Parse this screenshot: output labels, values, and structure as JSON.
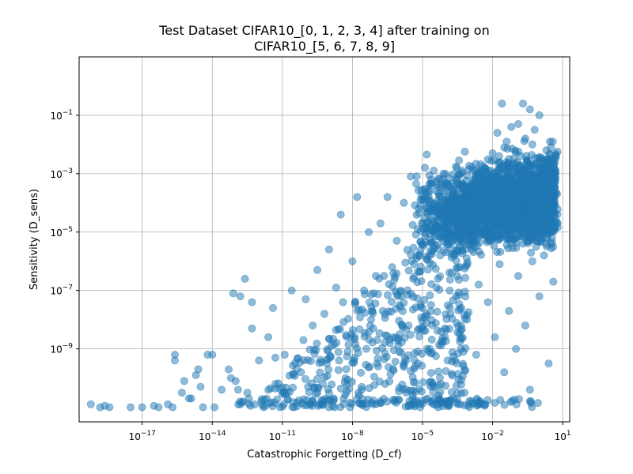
{
  "chart_data": {
    "type": "scatter",
    "title": [
      "Test Dataset CIFAR10_[0, 1, 2, 3, 4] after training on",
      "CIFAR10_[5, 6, 7, 8, 9]"
    ],
    "xlabel": "Catastrophic Forgetting (D_cf)",
    "ylabel": "Sensitivity (D_sens)",
    "xscale": "log",
    "yscale": "log",
    "xlim_log10": [
      -19.7,
      1.3
    ],
    "ylim_log10": [
      -11.5,
      1.0
    ],
    "x_ticks": [
      {
        "base": "10",
        "exp": "−17",
        "log": -17
      },
      {
        "base": "10",
        "exp": "−14",
        "log": -14
      },
      {
        "base": "10",
        "exp": "−11",
        "log": -11
      },
      {
        "base": "10",
        "exp": "−8",
        "log": -8
      },
      {
        "base": "10",
        "exp": "−5",
        "log": -5
      },
      {
        "base": "10",
        "exp": "−2",
        "log": -2
      },
      {
        "base": "10",
        "exp": "1",
        "log": 1
      }
    ],
    "y_ticks": [
      {
        "base": "10",
        "exp": "−1",
        "log": -1
      },
      {
        "base": "10",
        "exp": "−3",
        "log": -3
      },
      {
        "base": "10",
        "exp": "−5",
        "log": -5
      },
      {
        "base": "10",
        "exp": "−7",
        "log": -7
      },
      {
        "base": "10",
        "exp": "−9",
        "log": -9
      }
    ],
    "grid": true,
    "color": "#1f77b4",
    "alpha": 0.5,
    "series": [
      {
        "points_log10": [
          [
            -19.2,
            -10.9
          ],
          [
            -18.8,
            -11.0
          ],
          [
            -18.6,
            -10.95
          ],
          [
            -18.4,
            -11.0
          ],
          [
            -17.5,
            -11.0
          ],
          [
            -17.0,
            -11.0
          ],
          [
            -16.5,
            -10.95
          ],
          [
            -16.3,
            -11.0
          ],
          [
            -15.9,
            -10.9
          ],
          [
            -15.7,
            -11.0
          ],
          [
            -15.6,
            -9.2
          ],
          [
            -15.6,
            -9.4
          ],
          [
            -15.3,
            -10.5
          ],
          [
            -15.2,
            -10.1
          ],
          [
            -15.0,
            -10.7
          ],
          [
            -14.9,
            -10.7
          ],
          [
            -14.7,
            -9.9
          ],
          [
            -14.6,
            -9.7
          ],
          [
            -14.5,
            -10.3
          ],
          [
            -14.4,
            -11.0
          ],
          [
            -14.2,
            -9.2
          ],
          [
            -14.0,
            -9.2
          ],
          [
            -13.9,
            -11.0
          ],
          [
            -13.6,
            -10.4
          ],
          [
            -13.3,
            -9.7
          ],
          [
            -13.2,
            -10.0
          ],
          [
            -13.1,
            -7.1
          ],
          [
            -13.0,
            -10.1
          ],
          [
            -12.9,
            -10.4
          ],
          [
            -12.8,
            -10.9
          ],
          [
            -12.8,
            -7.2
          ],
          [
            -12.6,
            -6.6
          ],
          [
            -12.5,
            -10.5
          ],
          [
            -12.3,
            -7.4
          ],
          [
            -12.3,
            -8.3
          ],
          [
            -12.0,
            -9.4
          ],
          [
            -11.9,
            -10.8
          ],
          [
            -11.8,
            -11.0
          ],
          [
            -11.6,
            -8.6
          ],
          [
            -11.4,
            -7.6
          ],
          [
            -11.3,
            -9.3
          ],
          [
            -11.3,
            -10.2
          ],
          [
            -11.1,
            -11.0
          ],
          [
            -10.9,
            -9.2
          ],
          [
            -10.8,
            -10.5
          ],
          [
            -10.6,
            -7.0
          ],
          [
            -10.5,
            -11.0
          ],
          [
            -10.2,
            -9.8
          ],
          [
            -10.1,
            -8.7
          ],
          [
            -10.0,
            -7.3
          ],
          [
            -9.9,
            -10.3
          ],
          [
            -9.7,
            -8.2
          ],
          [
            -9.5,
            -6.3
          ],
          [
            -9.4,
            -10.9
          ],
          [
            -9.2,
            -7.8
          ],
          [
            -9.1,
            -9.5
          ],
          [
            -9.0,
            -5.6
          ],
          [
            -8.9,
            -8.9
          ],
          [
            -8.8,
            -10.7
          ],
          [
            -8.7,
            -6.9
          ],
          [
            -8.5,
            -4.4
          ],
          [
            -8.4,
            -7.4
          ],
          [
            -8.3,
            -10.0
          ],
          [
            -8.2,
            -9.1
          ],
          [
            -8.1,
            -11.0
          ],
          [
            -8.0,
            -6.0
          ],
          [
            -7.9,
            -8.6
          ],
          [
            -7.8,
            -3.8
          ],
          [
            -7.6,
            -10.4
          ],
          [
            -7.5,
            -7.0
          ],
          [
            -7.4,
            -9.0
          ],
          [
            -7.3,
            -5.0
          ],
          [
            -7.2,
            -8.0
          ],
          [
            -7.1,
            -10.9
          ],
          [
            -7.0,
            -6.5
          ],
          [
            -6.9,
            -9.6
          ],
          [
            -6.8,
            -4.7
          ],
          [
            -6.7,
            -7.7
          ],
          [
            -6.6,
            -10.2
          ],
          [
            -6.5,
            -3.8
          ],
          [
            -6.4,
            -8.8
          ],
          [
            -6.3,
            -6.2
          ],
          [
            -6.2,
            -10.8
          ],
          [
            -6.1,
            -5.3
          ],
          [
            -6.0,
            -9.1
          ],
          [
            -5.9,
            -7.2
          ],
          [
            -5.8,
            -4.0
          ],
          [
            -5.7,
            -10.5
          ],
          [
            -5.6,
            -8.2
          ],
          [
            -5.5,
            -3.1
          ],
          [
            -5.4,
            -6.6
          ],
          [
            -5.3,
            -9.6
          ],
          [
            -5.2,
            -4.9
          ],
          [
            -5.1,
            -11.0
          ],
          [
            -5.0,
            -7.6
          ],
          [
            -4.9,
            -2.8
          ],
          [
            -4.8,
            -9.0
          ],
          [
            -4.7,
            -5.8
          ],
          [
            -4.6,
            -3.4
          ],
          [
            -4.5,
            -10.3
          ],
          [
            -4.4,
            -6.9
          ],
          [
            -4.3,
            -4.4
          ],
          [
            -4.2,
            -8.4
          ],
          [
            -4.1,
            -3.0
          ],
          [
            -4.0,
            -10.8
          ],
          [
            -3.9,
            -5.4
          ],
          [
            -3.8,
            -7.8
          ],
          [
            -3.7,
            -3.7
          ],
          [
            -3.6,
            -9.4
          ],
          [
            -3.5,
            -4.8
          ],
          [
            -3.4,
            -6.2
          ],
          [
            -3.3,
            -2.9
          ],
          [
            -3.2,
            -10.5
          ],
          [
            -3.1,
            -8.0
          ],
          [
            -3.0,
            -4.2
          ],
          [
            -2.9,
            -5.6
          ],
          [
            -2.8,
            -3.2
          ],
          [
            -2.7,
            -9.2
          ],
          [
            -2.6,
            -6.8
          ],
          [
            -2.5,
            -4.6
          ],
          [
            -2.4,
            -2.9
          ],
          [
            -2.3,
            -10.9
          ],
          [
            -2.2,
            -7.4
          ],
          [
            -2.1,
            -3.8
          ],
          [
            -2.0,
            -5.2
          ],
          [
            -1.9,
            -8.6
          ],
          [
            -1.8,
            -3.0
          ],
          [
            -1.7,
            -6.1
          ],
          [
            -1.6,
            -4.1
          ],
          [
            -1.5,
            -9.8
          ],
          [
            -1.4,
            -2.6
          ],
          [
            -1.3,
            -7.7
          ],
          [
            -1.2,
            -4.8
          ],
          [
            -1.1,
            -3.3
          ],
          [
            -1.0,
            -9.0
          ],
          [
            -0.9,
            -6.5
          ],
          [
            -0.8,
            -2.4
          ],
          [
            -0.7,
            -5.4
          ],
          [
            -0.6,
            -8.2
          ],
          [
            -0.5,
            -3.6
          ],
          [
            -0.4,
            -10.4
          ],
          [
            -0.3,
            -6.0
          ],
          [
            -0.2,
            -1.5
          ],
          [
            -0.1,
            -4.4
          ],
          [
            0.0,
            -7.2
          ],
          [
            0.1,
            -3.0
          ],
          [
            0.2,
            -5.8
          ],
          [
            0.3,
            -2.2
          ],
          [
            0.4,
            -9.5
          ],
          [
            0.5,
            -4.0
          ],
          [
            0.6,
            -6.7
          ],
          [
            0.0,
            -1.0
          ],
          [
            -0.4,
            -0.8
          ],
          [
            -0.7,
            -0.6
          ],
          [
            -0.9,
            -1.3
          ],
          [
            -1.2,
            -1.4
          ],
          [
            -1.6,
            -0.6
          ],
          [
            -1.5,
            -2.1
          ],
          [
            -1.4,
            -1.9
          ],
          [
            -1.3,
            -2.5
          ],
          [
            -1.8,
            -1.6
          ],
          [
            -2.0,
            -2.3
          ],
          [
            -1.7,
            -2.6
          ],
          [
            -0.6,
            -1.8
          ],
          [
            -0.3,
            -2.0
          ]
        ],
        "dense_region_log10": {
          "x": [
            -5.5,
            0.7
          ],
          "y": [
            -7.5,
            -1.5
          ],
          "count": 2200
        },
        "floor_band_log10": {
          "x": [
            -13.0,
            0.0
          ],
          "y": [
            -11.0,
            -10.7
          ],
          "count": 160
        },
        "mid_band_log10": {
          "x": [
            -12.0,
            -3.0
          ],
          "y": [
            -10.5,
            -5.5
          ],
          "count": 420
        }
      }
    ]
  }
}
